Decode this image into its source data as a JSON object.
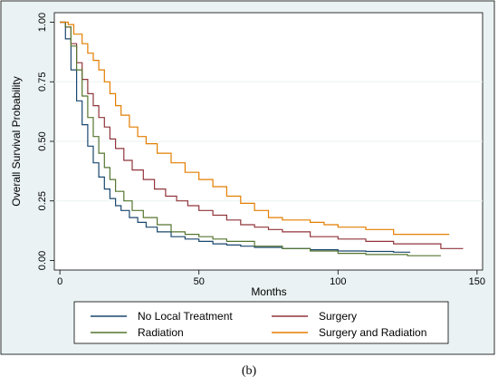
{
  "caption": "(b)",
  "chart_data": {
    "type": "line",
    "step": true,
    "xlabel": "Months",
    "ylabel": "Overall Survival Probability",
    "xlim": [
      -2,
      152
    ],
    "ylim": [
      -0.04,
      1.04
    ],
    "xticks": [
      0,
      50,
      100,
      150
    ],
    "xtick_labels": [
      "0",
      "50",
      "100",
      "150"
    ],
    "yticks": [
      0,
      0.25,
      0.5,
      0.75,
      1
    ],
    "ytick_labels": [
      "0.00",
      "0.25",
      "0.50",
      "0.75",
      "1.00"
    ],
    "grid": "horizontal",
    "legend_position": "bottom",
    "colors": {
      "frame_bg": "#eaf2f3",
      "plot_bg": "#ffffff",
      "grid": "#eaf2f3"
    },
    "series": [
      {
        "name": "No Local Treatment",
        "color": "#1a476f",
        "x": [
          0,
          2,
          4,
          6,
          8,
          10,
          12,
          14,
          16,
          18,
          20,
          22,
          25,
          28,
          31,
          35,
          40,
          45,
          50,
          55,
          60,
          65,
          70,
          80,
          90,
          100,
          110,
          120,
          126
        ],
        "y": [
          1.0,
          0.93,
          0.8,
          0.67,
          0.57,
          0.48,
          0.41,
          0.35,
          0.3,
          0.26,
          0.23,
          0.21,
          0.18,
          0.16,
          0.14,
          0.12,
          0.1,
          0.09,
          0.08,
          0.07,
          0.065,
          0.06,
          0.055,
          0.05,
          0.045,
          0.04,
          0.038,
          0.035,
          0.035
        ]
      },
      {
        "name": "Surgery",
        "color": "#90353b",
        "x": [
          0,
          2,
          4,
          6,
          8,
          10,
          12,
          14,
          16,
          18,
          20,
          23,
          26,
          30,
          34,
          38,
          42,
          46,
          50,
          55,
          60,
          65,
          70,
          75,
          80,
          90,
          100,
          110,
          120,
          137,
          145
        ],
        "y": [
          1.0,
          0.98,
          0.91,
          0.83,
          0.76,
          0.7,
          0.65,
          0.6,
          0.56,
          0.51,
          0.47,
          0.42,
          0.38,
          0.34,
          0.3,
          0.27,
          0.25,
          0.23,
          0.21,
          0.19,
          0.17,
          0.15,
          0.14,
          0.13,
          0.12,
          0.1,
          0.09,
          0.08,
          0.07,
          0.05,
          0.05
        ]
      },
      {
        "name": "Radiation",
        "color": "#55752f",
        "x": [
          0,
          2,
          4,
          6,
          8,
          10,
          12,
          14,
          16,
          18,
          20,
          23,
          26,
          30,
          35,
          40,
          45,
          50,
          55,
          60,
          70,
          80,
          90,
          100,
          110,
          125,
          137
        ],
        "y": [
          1.0,
          0.98,
          0.9,
          0.8,
          0.69,
          0.6,
          0.52,
          0.45,
          0.39,
          0.34,
          0.29,
          0.25,
          0.21,
          0.18,
          0.15,
          0.12,
          0.11,
          0.1,
          0.09,
          0.08,
          0.06,
          0.05,
          0.04,
          0.03,
          0.025,
          0.02,
          0.02
        ]
      },
      {
        "name": "Surgery and Radiation",
        "color": "#e37e00",
        "x": [
          0,
          3,
          5,
          8,
          10,
          12,
          14,
          16,
          18,
          20,
          22,
          25,
          28,
          31,
          35,
          40,
          45,
          50,
          55,
          60,
          65,
          70,
          75,
          80,
          85,
          90,
          95,
          100,
          110,
          120,
          130,
          140
        ],
        "y": [
          1.0,
          0.99,
          0.95,
          0.91,
          0.87,
          0.84,
          0.8,
          0.75,
          0.7,
          0.65,
          0.61,
          0.56,
          0.52,
          0.49,
          0.45,
          0.41,
          0.37,
          0.34,
          0.31,
          0.27,
          0.24,
          0.21,
          0.18,
          0.17,
          0.17,
          0.16,
          0.15,
          0.14,
          0.13,
          0.11,
          0.11,
          0.11
        ]
      }
    ]
  }
}
